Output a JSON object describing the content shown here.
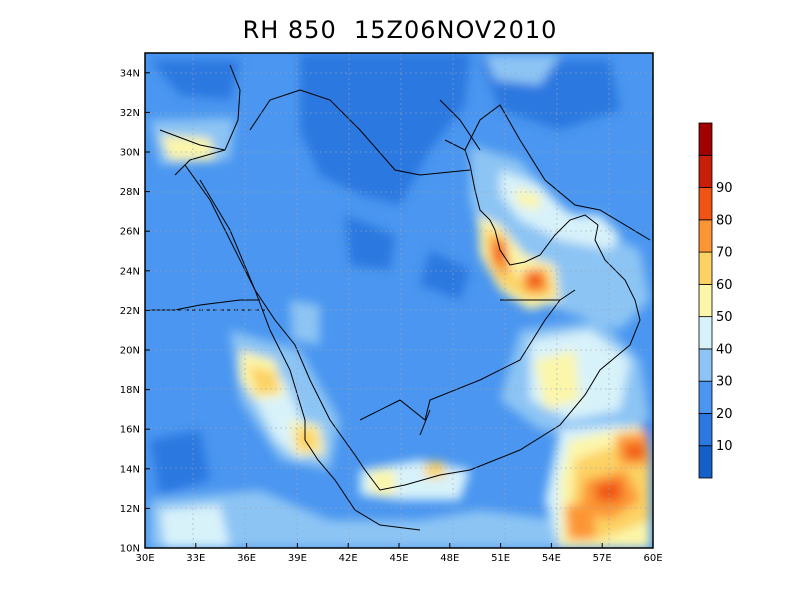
{
  "title": "RH 850  15Z06NOV2010",
  "map": {
    "variable": "RH",
    "level": "850",
    "time": "15Z06NOV2010",
    "lon_range": [
      30,
      60
    ],
    "lat_range": [
      10,
      35
    ]
  },
  "axes": {
    "lon_ticks": [
      "30E",
      "33E",
      "36E",
      "39E",
      "42E",
      "45E",
      "48E",
      "51E",
      "54E",
      "57E",
      "60E"
    ],
    "lat_ticks": [
      "10N",
      "12N",
      "14N",
      "16N",
      "18N",
      "20N",
      "22N",
      "24N",
      "26N",
      "28N",
      "30N",
      "32N",
      "34N"
    ]
  },
  "colorbar": {
    "labels": [
      "10",
      "20",
      "30",
      "40",
      "50",
      "60",
      "70",
      "80",
      "90"
    ],
    "colors": [
      "#1460c8",
      "#2a78e0",
      "#4a96f0",
      "#8cc4f4",
      "#d8f2fa",
      "#fcf6aa",
      "#fcd264",
      "#fc9634",
      "#f05414",
      "#c81e0a",
      "#a00000"
    ]
  },
  "colors": {
    "base_blue": "#4a96f0",
    "mid_blue": "#2a78e0",
    "light_blue": "#8cc4f4",
    "pale": "#d8f2fa",
    "yellow": "#fcf6aa",
    "orange": "#fc9634",
    "red": "#f05414",
    "dark_red": "#c81e0a"
  }
}
